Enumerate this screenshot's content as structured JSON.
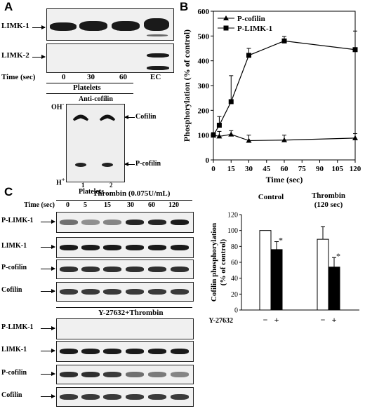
{
  "panels": {
    "a": "A",
    "b": "B",
    "c": "C"
  },
  "panel_a": {
    "row_labels": [
      "LIMK-1",
      "LIMK-2"
    ],
    "time_label": "Time (sec)",
    "lane_labels": [
      "0",
      "30",
      "60",
      "EC"
    ],
    "group_label": "Platelets",
    "inset_title": "Anti-cofilin",
    "oh_label": "OH",
    "oh_sup": "-",
    "h_label": "H",
    "h_sup": "+",
    "cofilin_label": "Cofilin",
    "pcofilin_label": "P-cofilin",
    "inset_lanes": [
      "1",
      "2"
    ],
    "inset_group": "Platelets"
  },
  "panel_c": {
    "thrombin_header": "Thrombin (0.075U/mL)",
    "y_header": "Y-27632+Thrombin",
    "time_label": "Time (sec)",
    "lanes": [
      "0",
      "5",
      "15",
      "30",
      "60",
      "120"
    ],
    "blot_labels": [
      "P-LIMK-1",
      "LIMK-1",
      "P-cofilin",
      "Cofilin",
      "P-LIMK-1",
      "LIMK-1",
      "P-cofilin",
      "Cofilin"
    ]
  },
  "chart_data": [
    {
      "type": "line",
      "title": "",
      "xlabel": "Time (sec)",
      "ylabel": "Phosphorylation (% of control)",
      "xlim": [
        0,
        120
      ],
      "ylim": [
        0,
        600
      ],
      "xticks": [
        0,
        15,
        30,
        45,
        60,
        75,
        90,
        105,
        120
      ],
      "yticks": [
        0,
        100,
        200,
        300,
        400,
        500,
        600
      ],
      "legend_position": "top-left",
      "series": [
        {
          "name": "P-cofilin",
          "marker": "triangle",
          "x": [
            0,
            5,
            15,
            30,
            60,
            120
          ],
          "y": [
            100,
            95,
            103,
            78,
            80,
            88
          ],
          "err": [
            10,
            20,
            15,
            22,
            20,
            18
          ]
        },
        {
          "name": "P-LIMK-1",
          "marker": "square",
          "x": [
            0,
            5,
            15,
            30,
            60,
            120
          ],
          "y": [
            100,
            140,
            235,
            422,
            480,
            445
          ],
          "err": [
            10,
            35,
            105,
            28,
            18,
            75
          ]
        }
      ]
    },
    {
      "type": "bar",
      "title": "",
      "ylabel": "Cofilin phosphorylation (% of control)",
      "ylim": [
        0,
        120
      ],
      "yticks": [
        0,
        20,
        40,
        60,
        80,
        100,
        120
      ],
      "groups": [
        "Control",
        "Thrombin (120 sec)"
      ],
      "treatment_label": "Y-27632",
      "treatment_marks": [
        "−",
        "+",
        "−",
        "+"
      ],
      "series": [
        {
          "name": "−",
          "color": "#ffffff",
          "values": [
            100,
            89
          ],
          "err": [
            0,
            16
          ]
        },
        {
          "name": "+",
          "color": "#000000",
          "values": [
            76,
            54
          ],
          "err": [
            10,
            12
          ]
        }
      ],
      "annotations": [
        "*",
        "*"
      ]
    }
  ]
}
